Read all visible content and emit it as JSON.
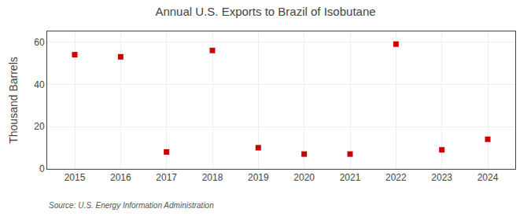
{
  "chart_data": {
    "type": "scatter",
    "title": "Annual U.S. Exports to Brazil of Isobutane",
    "ylabel": "Thousand Barrels",
    "annotations": [
      "Source: U.S. Energy Information Administration"
    ],
    "x": [
      2015,
      2016,
      2017,
      2018,
      2019,
      2020,
      2021,
      2022,
      2023,
      2024
    ],
    "values": [
      54,
      53,
      8,
      56,
      10,
      7,
      7,
      59,
      9,
      14
    ],
    "color": "#cc0000",
    "marker": "square",
    "xlim": [
      2014.4,
      2024.6
    ],
    "xticks": [
      2015,
      2016,
      2017,
      2018,
      2019,
      2020,
      2021,
      2022,
      2023,
      2024
    ],
    "ylim": [
      0,
      65
    ],
    "yticks": [
      0,
      20,
      40,
      60
    ],
    "grid": true
  }
}
